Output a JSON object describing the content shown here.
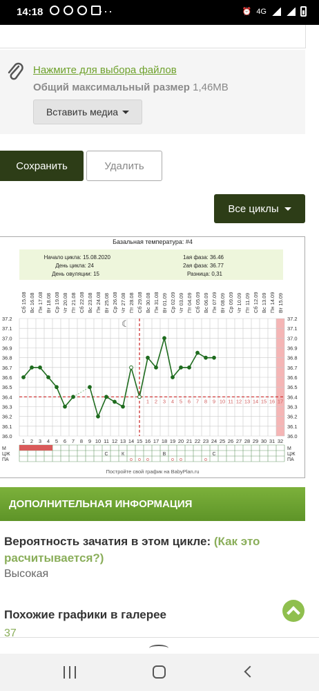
{
  "status_bar": {
    "time": "14:18",
    "network": "4G",
    "icons": [
      "telegram-icon",
      "viber-icon",
      "whatsapp-icon",
      "app-icon",
      "more-dots-icon",
      "alarm-icon",
      "signal-icon",
      "battery-icon"
    ]
  },
  "attachments": {
    "select_files_link": "Нажмите для выбора файлов",
    "max_size_label": "Общий максимальный размер",
    "max_size_value": "1,46MB",
    "insert_media_button": "Вставить медиа"
  },
  "actions": {
    "save_button": "Сохранить",
    "delete_button": "Удалить",
    "all_cycles_button": "Все циклы"
  },
  "chart_data": {
    "type": "line",
    "title": "Базальная температура: #4",
    "summary": {
      "cycle_start_label": "Начало цикла: 15.08.2020",
      "cycle_day_label": "День цикла: 24",
      "ovulation_day_label": "День овуляции: 15",
      "phase1_label": "1ая фаза: 36.46",
      "phase2_label": "2ая фаза: 36.77",
      "difference_label": "Разница: 0,31"
    },
    "dates": [
      "Сб 15.08",
      "Вс 16.08",
      "Пн 17.08",
      "Вт 18.08",
      "Ср 19.08",
      "Чт 20.08",
      "Пт 21.08",
      "Сб 22.08",
      "Вс 23.08",
      "Пн 24.08",
      "Вт 25.08",
      "Ср 26.08",
      "Чт 27.08",
      "Пт 28.08",
      "Сб 29.08",
      "Вс 30.08",
      "Пн 31.08",
      "Вт 01.09",
      "Ср 02.09",
      "Чт 03.09",
      "Пт 04.09",
      "Сб 05.09",
      "Вс 06.09",
      "Пн 07.09",
      "Вт 08.09",
      "Ср 09.09",
      "Чт 10.09",
      "Пт 11.09",
      "Сб 12.09",
      "Вс 13.09",
      "Пн 14.09",
      "Вт 15.09"
    ],
    "days": [
      "1",
      "2",
      "3",
      "4",
      "5",
      "6",
      "7",
      "8",
      "9",
      "10",
      "11",
      "12",
      "13",
      "14",
      "15",
      "16",
      "17",
      "18",
      "19",
      "20",
      "21",
      "22",
      "23",
      "24",
      "25",
      "26",
      "27",
      "28",
      "29",
      "30",
      "31",
      "32"
    ],
    "temperatures": [
      36.6,
      36.7,
      36.7,
      36.6,
      36.5,
      36.3,
      36.4,
      null,
      36.5,
      36.2,
      36.4,
      36.35,
      36.3,
      36.7,
      36.4,
      36.8,
      36.7,
      37.0,
      36.6,
      36.7,
      36.7,
      36.85,
      36.8,
      36.8
    ],
    "y_ticks": [
      "37.2",
      "37.1",
      "37.0",
      "36.9",
      "36.8",
      "36.7",
      "36.6",
      "36.5",
      "36.4",
      "36.3",
      "36.2",
      "36.1",
      "36.0"
    ],
    "ylim": [
      36.0,
      37.2
    ],
    "coverline": 36.4,
    "ovulation_day": 15,
    "luteal_day_numbers": [
      "1",
      "2",
      "3",
      "4",
      "5",
      "6",
      "7",
      "8",
      "9",
      "10",
      "11",
      "12",
      "13",
      "14",
      "15",
      "16",
      "17"
    ],
    "row_labels": [
      "М",
      "ЦЖ",
      "ПА"
    ],
    "menstruation_days": 4,
    "cm_marks": [
      {
        "day": 11,
        "text": "С"
      },
      {
        "day": 13,
        "text": "К"
      },
      {
        "day": 18,
        "text": "В"
      },
      {
        "day": 24,
        "text": "С"
      }
    ],
    "pa_marks": [
      14,
      15,
      16,
      19,
      20,
      23
    ],
    "footer": "Постройте свой график на BabyPlan.ru",
    "colors": {
      "line": "#1e6b1e",
      "coverline": "#cc2222",
      "summary_bg": "#eef6dc",
      "menstruation": "#d95a5a",
      "highlight": "#f5b5b5"
    }
  },
  "info": {
    "header": "ДОПОЛНИТЕЛЬНАЯ ИНФОРМАЦИЯ",
    "probability_label": "Вероятность зачатия в этом цикле:",
    "probability_link": "(Как это расчитывается?)",
    "probability_value": "Высокая",
    "similar_label": "Похожие графики в галерее",
    "similar_count": "37"
  }
}
